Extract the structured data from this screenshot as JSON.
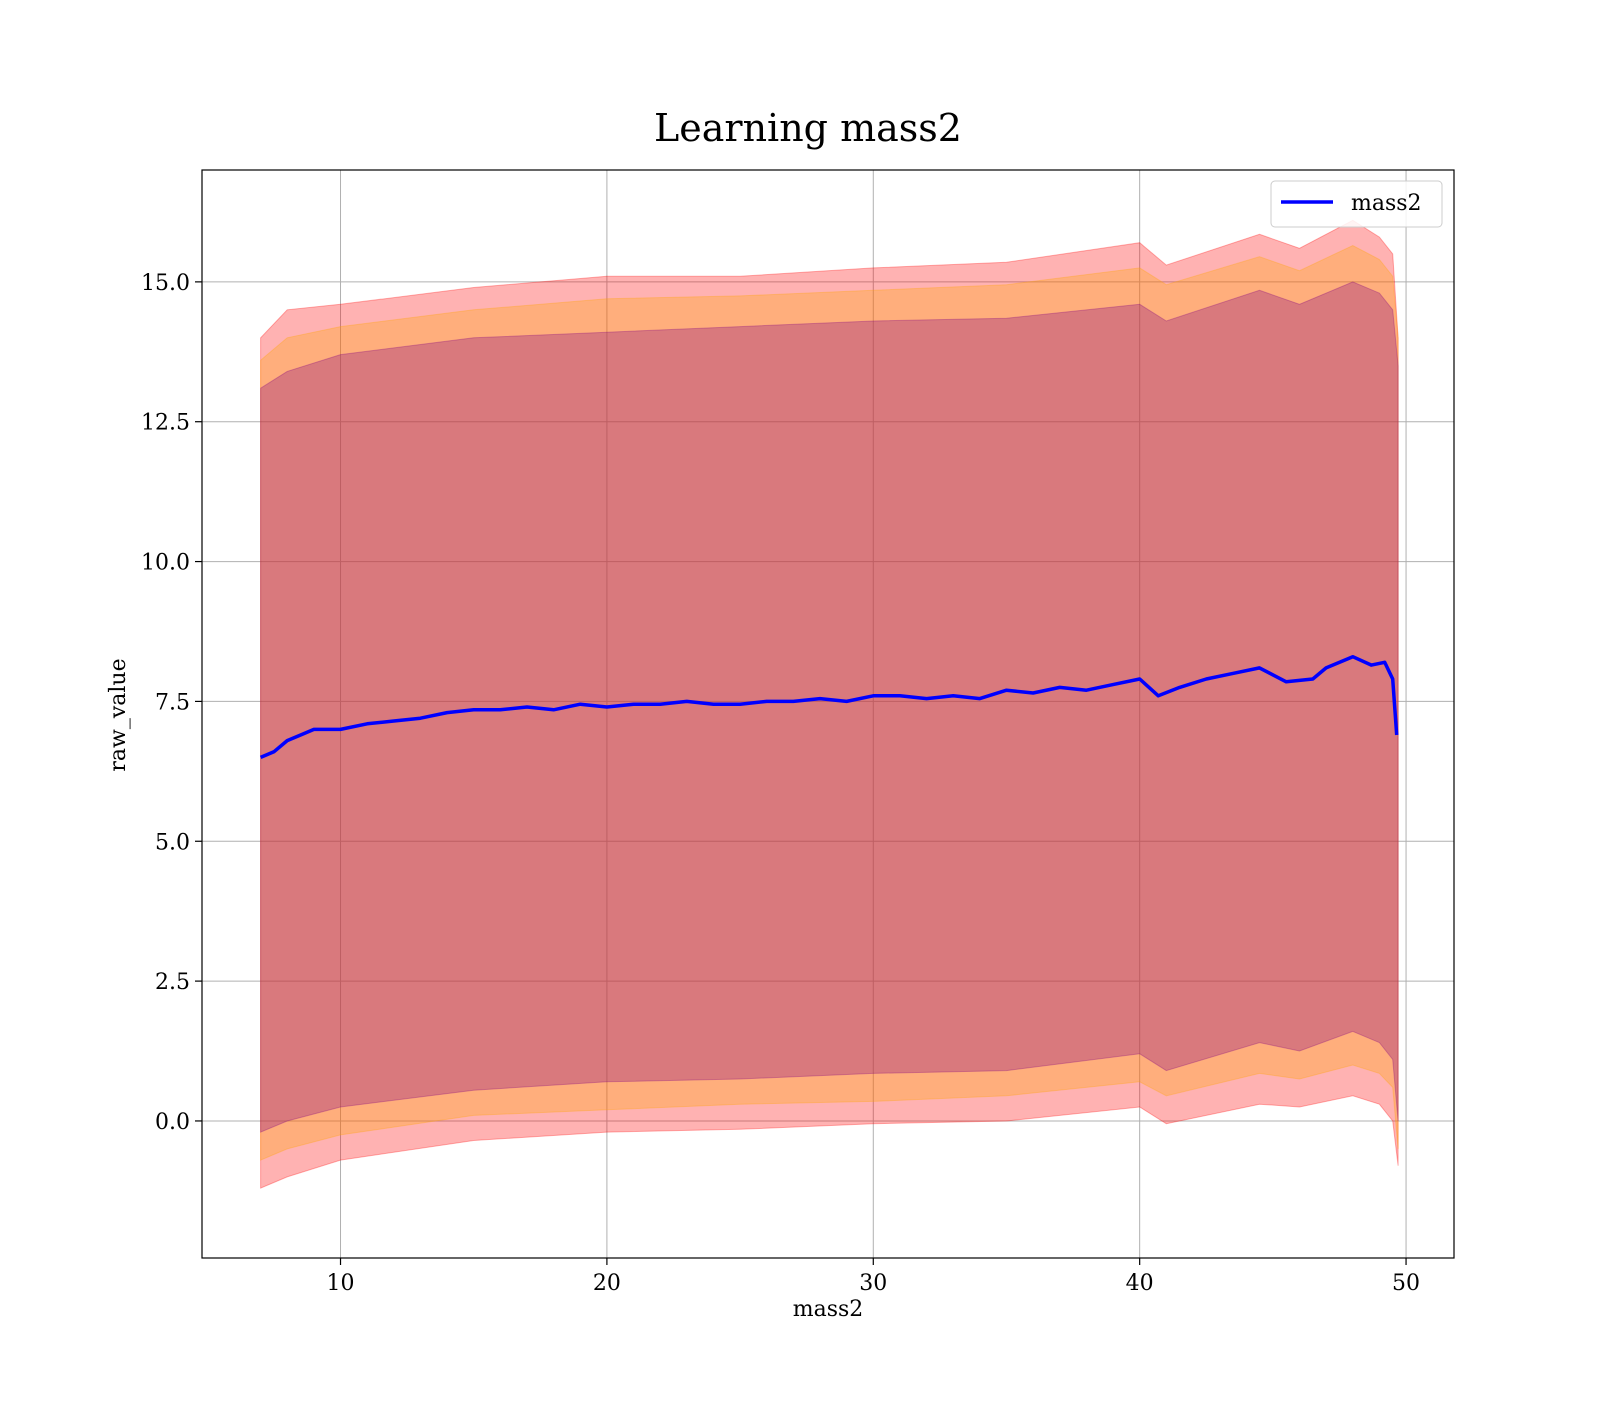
{
  "chart_data": {
    "type": "line",
    "title": "Learning mass2",
    "xlabel": "mass2",
    "ylabel": "raw_value",
    "xlim": [
      4.8,
      51.8
    ],
    "ylim": [
      -2.45,
      17.0
    ],
    "x_ticks": [
      10,
      20,
      30,
      40,
      50
    ],
    "x_tick_labels": [
      "10",
      "20",
      "30",
      "40",
      "50"
    ],
    "y_ticks": [
      0.0,
      2.5,
      5.0,
      7.5,
      10.0,
      12.5,
      15.0
    ],
    "y_tick_labels": [
      "0.0",
      "2.5",
      "5.0",
      "7.5",
      "10.0",
      "12.5",
      "15.0"
    ],
    "grid": true,
    "legend_position": "top-right",
    "series": [
      {
        "name": "mass2",
        "color": "#0000ff",
        "x": [
          7.0,
          7.5,
          8.0,
          8.5,
          9.0,
          9.5,
          10.0,
          11.0,
          12.0,
          13.0,
          14.0,
          15.0,
          16.0,
          17.0,
          18.0,
          19.0,
          20.0,
          21.0,
          22.0,
          23.0,
          24.0,
          25.0,
          26.0,
          27.0,
          28.0,
          29.0,
          30.0,
          31.0,
          32.0,
          33.0,
          34.0,
          35.0,
          36.0,
          37.0,
          38.0,
          39.0,
          40.0,
          40.7,
          41.5,
          42.5,
          43.5,
          44.5,
          45.5,
          46.5,
          47.0,
          48.0,
          48.7,
          49.2,
          49.5,
          49.65
        ],
        "values": [
          6.5,
          6.6,
          6.8,
          6.9,
          7.0,
          7.0,
          7.0,
          7.1,
          7.15,
          7.2,
          7.3,
          7.35,
          7.35,
          7.4,
          7.35,
          7.45,
          7.4,
          7.45,
          7.45,
          7.5,
          7.45,
          7.45,
          7.5,
          7.5,
          7.55,
          7.5,
          7.6,
          7.6,
          7.55,
          7.6,
          7.55,
          7.7,
          7.65,
          7.75,
          7.7,
          7.8,
          7.9,
          7.6,
          7.75,
          7.9,
          8.0,
          8.1,
          7.85,
          7.9,
          8.1,
          8.3,
          8.15,
          8.2,
          7.9,
          6.9
        ]
      }
    ],
    "bands": [
      {
        "color": "#ff0000",
        "opacity": 0.3,
        "x": [
          7.0,
          8.0,
          10.0,
          15.0,
          20.0,
          25.0,
          30.0,
          35.0,
          40.0,
          41.0,
          44.5,
          46.0,
          48.0,
          49.0,
          49.5,
          49.7
        ],
        "upper": [
          14.0,
          14.5,
          14.6,
          14.9,
          15.1,
          15.1,
          15.25,
          15.35,
          15.7,
          15.3,
          15.85,
          15.6,
          16.1,
          15.8,
          15.5,
          14.0
        ],
        "lower": [
          -1.2,
          -1.0,
          -0.7,
          -0.35,
          -0.2,
          -0.15,
          -0.05,
          0.0,
          0.25,
          -0.05,
          0.3,
          0.25,
          0.45,
          0.3,
          0.0,
          -0.8
        ]
      },
      {
        "color": "#ffa500",
        "opacity": 0.3,
        "x": [
          7.0,
          8.0,
          10.0,
          15.0,
          20.0,
          25.0,
          30.0,
          35.0,
          40.0,
          41.0,
          44.5,
          46.0,
          48.0,
          49.0,
          49.5,
          49.7
        ],
        "upper": [
          13.6,
          14.0,
          14.2,
          14.5,
          14.7,
          14.75,
          14.85,
          14.95,
          15.25,
          14.95,
          15.45,
          15.2,
          15.65,
          15.4,
          15.1,
          14.0
        ],
        "lower": [
          -0.7,
          -0.5,
          -0.25,
          0.1,
          0.2,
          0.3,
          0.35,
          0.45,
          0.7,
          0.45,
          0.85,
          0.75,
          1.0,
          0.85,
          0.6,
          -0.5
        ]
      },
      {
        "color": "#800080",
        "opacity": 0.3,
        "x": [
          7.0,
          8.0,
          10.0,
          15.0,
          20.0,
          25.0,
          30.0,
          35.0,
          40.0,
          41.0,
          44.5,
          46.0,
          48.0,
          49.0,
          49.5,
          49.7
        ],
        "upper": [
          13.1,
          13.4,
          13.7,
          14.0,
          14.1,
          14.2,
          14.3,
          14.35,
          14.6,
          14.3,
          14.85,
          14.6,
          15.0,
          14.8,
          14.5,
          13.5
        ],
        "lower": [
          -0.2,
          0.0,
          0.25,
          0.55,
          0.7,
          0.75,
          0.85,
          0.9,
          1.2,
          0.9,
          1.4,
          1.25,
          1.6,
          1.4,
          1.1,
          0.0
        ]
      }
    ]
  }
}
